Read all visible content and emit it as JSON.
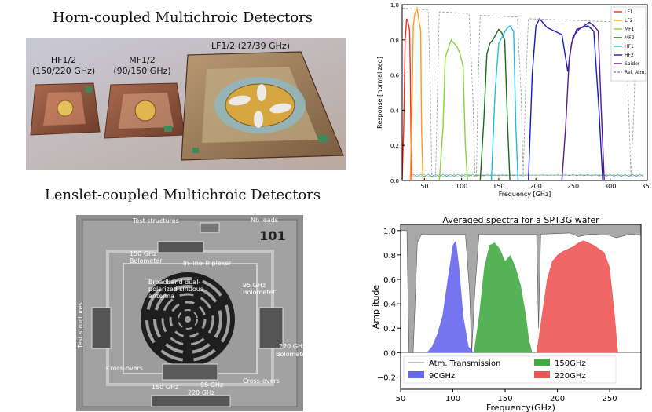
{
  "headings": {
    "horn": "Horn-coupled Multichroic Detectors",
    "lenslet": "Lenslet-coupled Multichroic Detectors"
  },
  "horn_photo": {
    "hf_label_1": "HF1/2",
    "hf_label_2": "(150/220 GHz)",
    "mf_label_1": "MF1/2",
    "mf_label_2": "(90/150 GHz)",
    "lf_label": "LF1/2 (27/39 GHz)"
  },
  "lenslet_photo": {
    "wafer_number": "101",
    "test_structures_top": "Test structures",
    "nb_leads": "Nb leads",
    "bolo150_1": "150 GHz",
    "bolo150_2": "Bolometer",
    "triplexer": "In-line Triplexer",
    "antenna_1": "Broadband dual-",
    "antenna_2": "polarized sinuous",
    "antenna_3": "antenna",
    "bolo95_1": "95 GHz",
    "bolo95_2": "Bolometer",
    "test_structures_side": "Test structures",
    "bolo220_1": "220 GHz",
    "bolo220_2": "Bolometer",
    "crossovers_left": "Cross-overs",
    "crossovers_right": "Cross-overs",
    "bot_150": "150 GHz",
    "bot_95": "95 GHz",
    "bot_220": "220 GHz"
  },
  "chart_data": [
    {
      "type": "line",
      "title": "",
      "xlabel": "Frequency [GHz]",
      "ylabel": "Response [normalized]",
      "xlim": [
        20,
        350
      ],
      "ylim": [
        0,
        1.0
      ],
      "xticks": [
        50,
        100,
        150,
        200,
        250,
        300,
        350
      ],
      "yticks": [
        0.0,
        0.2,
        0.4,
        0.6,
        0.8,
        1.0
      ],
      "legend_position": "top-right",
      "series": [
        {
          "name": "LF1",
          "color": "#ff2a1a",
          "x": [
            20,
            22,
            24,
            26,
            28,
            30,
            31,
            32,
            33
          ],
          "y": [
            0.0,
            0.3,
            0.8,
            0.92,
            0.9,
            0.85,
            0.6,
            0.2,
            0.0
          ]
        },
        {
          "name": "LF2",
          "color": "#ff9a1a",
          "x": [
            31,
            33,
            35,
            37,
            40,
            43,
            45,
            46,
            48
          ],
          "y": [
            0.0,
            0.4,
            0.88,
            0.95,
            0.98,
            0.9,
            0.85,
            0.3,
            0.0
          ]
        },
        {
          "name": "MF1",
          "color": "#8cd23a",
          "x": [
            70,
            75,
            78,
            82,
            86,
            90,
            94,
            98,
            102,
            105,
            108
          ],
          "y": [
            0.0,
            0.3,
            0.7,
            0.75,
            0.8,
            0.78,
            0.76,
            0.72,
            0.65,
            0.2,
            0.0
          ]
        },
        {
          "name": "MF2",
          "color": "#1a6a1a",
          "x": [
            125,
            130,
            134,
            138,
            142,
            146,
            150,
            154,
            158,
            162,
            165
          ],
          "y": [
            0.0,
            0.35,
            0.72,
            0.78,
            0.8,
            0.83,
            0.86,
            0.84,
            0.8,
            0.3,
            0.0
          ]
        },
        {
          "name": "HF1",
          "color": "#1ac0e6",
          "x": [
            140,
            145,
            150,
            155,
            160,
            165,
            170,
            173,
            176
          ],
          "y": [
            0.0,
            0.5,
            0.78,
            0.82,
            0.86,
            0.88,
            0.85,
            0.3,
            0.0
          ]
        },
        {
          "name": "HF2",
          "color": "#1a1ac0",
          "x": [
            190,
            195,
            200,
            205,
            215,
            225,
            235,
            243,
            248,
            255,
            262,
            270,
            278,
            285,
            290
          ],
          "y": [
            0.0,
            0.6,
            0.88,
            0.92,
            0.87,
            0.85,
            0.83,
            0.62,
            0.78,
            0.86,
            0.87,
            0.88,
            0.85,
            0.4,
            0.0
          ]
        },
        {
          "name": "Spider",
          "color": "#5a1a90",
          "x": [
            235,
            240,
            245,
            250,
            258,
            265,
            272,
            278,
            284,
            288,
            292
          ],
          "y": [
            0.0,
            0.3,
            0.7,
            0.82,
            0.86,
            0.88,
            0.9,
            0.88,
            0.85,
            0.4,
            0.0
          ]
        },
        {
          "name": "Ref. Atm.",
          "color": "#999999",
          "dashed": true,
          "x": [
            20,
            55,
            58,
            60,
            65,
            68,
            70,
            110,
            115,
            118,
            120,
            122,
            125,
            175,
            180,
            183,
            186,
            190,
            320,
            325,
            328,
            332,
            335,
            350
          ],
          "y": [
            0.98,
            0.97,
            0.5,
            0.02,
            0.02,
            0.6,
            0.96,
            0.95,
            0.5,
            0.02,
            0.02,
            0.5,
            0.94,
            0.93,
            0.5,
            0.02,
            0.5,
            0.92,
            0.9,
            0.4,
            0.02,
            0.4,
            0.85,
            0.85
          ]
        }
      ]
    },
    {
      "type": "area",
      "title": "Averaged spectra for a SPT3G wafer",
      "xlabel": "Frequency(GHz)",
      "ylabel": "Amplitude",
      "xlim": [
        50,
        280
      ],
      "ylim": [
        -0.3,
        1.05
      ],
      "xticks": [
        50,
        100,
        150,
        200,
        250
      ],
      "yticks": [
        -0.2,
        0.0,
        0.2,
        0.4,
        0.6,
        0.8,
        1.0
      ],
      "legend_position": "bottom",
      "series": [
        {
          "name": "Atm. Transmission",
          "color": "#999999",
          "kind": "line"
        },
        {
          "name": "90GHz",
          "color": "#6666ee",
          "x": [
            75,
            80,
            85,
            90,
            95,
            100,
            103,
            106,
            110,
            115,
            120
          ],
          "y": [
            0.0,
            0.05,
            0.15,
            0.3,
            0.6,
            0.88,
            0.92,
            0.7,
            0.3,
            0.05,
            0.0
          ]
        },
        {
          "name": "150GHz",
          "color": "#44aa44",
          "x": [
            120,
            125,
            130,
            135,
            140,
            145,
            150,
            155,
            160,
            165,
            170,
            173,
            176
          ],
          "y": [
            0.0,
            0.3,
            0.7,
            0.88,
            0.9,
            0.85,
            0.75,
            0.8,
            0.7,
            0.55,
            0.3,
            0.1,
            0.0
          ]
        },
        {
          "name": "220GHz",
          "color": "#ee5555",
          "x": [
            180,
            185,
            190,
            195,
            200,
            205,
            210,
            215,
            220,
            225,
            230,
            235,
            240,
            245,
            250,
            255,
            258
          ],
          "y": [
            0.0,
            0.3,
            0.6,
            0.75,
            0.8,
            0.83,
            0.85,
            0.87,
            0.9,
            0.92,
            0.9,
            0.88,
            0.85,
            0.82,
            0.7,
            0.3,
            0.0
          ]
        }
      ]
    }
  ]
}
